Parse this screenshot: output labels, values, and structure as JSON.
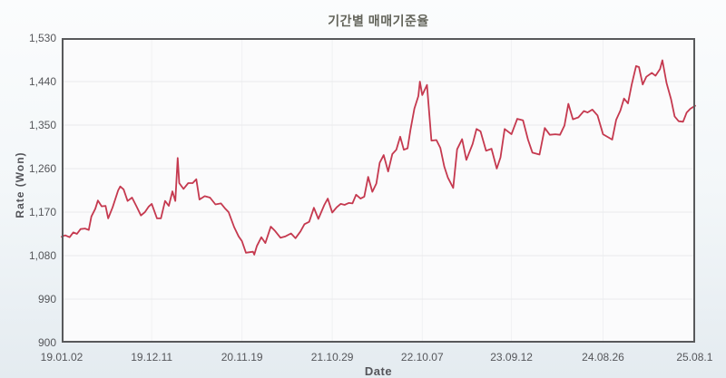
{
  "title": "기간별 매매기준율",
  "colors": {
    "line": "#c5394f",
    "plot_background": "#fbfbfc",
    "plot_border": "#58595b",
    "h_gridline": "#e9eaec",
    "v_gridline": "#f0f1f3",
    "tick_text": "#55565a",
    "title_text": "#63645a"
  },
  "chart_data": {
    "type": "line",
    "title": "기간별 매매기준율",
    "xlabel": "Date",
    "ylabel": "Rate (Won)",
    "ylim": [
      900,
      1530
    ],
    "yticks": [
      {
        "value": 900,
        "label": "900"
      },
      {
        "value": 990,
        "label": "990"
      },
      {
        "value": 1080,
        "label": "1,080"
      },
      {
        "value": 1170,
        "label": "1,170"
      },
      {
        "value": 1260,
        "label": "1,260"
      },
      {
        "value": 1350,
        "label": "1,350"
      },
      {
        "value": 1440,
        "label": "1,440"
      },
      {
        "value": 1530,
        "label": "1,530"
      }
    ],
    "x_range_days": [
      0,
      2414
    ],
    "xticks": [
      {
        "day": 0,
        "label": "19.01.02"
      },
      {
        "day": 343,
        "label": "19.12.11"
      },
      {
        "day": 687,
        "label": "20.11.19"
      },
      {
        "day": 1031,
        "label": "21.10.29"
      },
      {
        "day": 1374,
        "label": "22.10.07"
      },
      {
        "day": 1714,
        "label": "23.09.12"
      },
      {
        "day": 2063,
        "label": "24.08.26"
      },
      {
        "day": 2412,
        "label": "25.08.1"
      }
    ],
    "grid": true,
    "legend": "none",
    "series": [
      {
        "name": "매매기준율",
        "color": "#c5394f",
        "points": [
          [
            0,
            1119
          ],
          [
            13,
            1122
          ],
          [
            30,
            1118
          ],
          [
            44,
            1128
          ],
          [
            58,
            1125
          ],
          [
            72,
            1135
          ],
          [
            89,
            1136
          ],
          [
            103,
            1133
          ],
          [
            113,
            1161
          ],
          [
            128,
            1177
          ],
          [
            138,
            1194
          ],
          [
            152,
            1182
          ],
          [
            167,
            1183
          ],
          [
            177,
            1157
          ],
          [
            194,
            1180
          ],
          [
            215,
            1215
          ],
          [
            223,
            1223
          ],
          [
            236,
            1217
          ],
          [
            251,
            1193
          ],
          [
            268,
            1200
          ],
          [
            285,
            1182
          ],
          [
            302,
            1163
          ],
          [
            317,
            1170
          ],
          [
            331,
            1181
          ],
          [
            343,
            1187
          ],
          [
            363,
            1157
          ],
          [
            378,
            1157
          ],
          [
            394,
            1193
          ],
          [
            408,
            1183
          ],
          [
            422,
            1213
          ],
          [
            433,
            1193
          ],
          [
            442,
            1282
          ],
          [
            448,
            1230
          ],
          [
            464,
            1218
          ],
          [
            482,
            1230
          ],
          [
            499,
            1230
          ],
          [
            513,
            1238
          ],
          [
            525,
            1196
          ],
          [
            545,
            1203
          ],
          [
            565,
            1200
          ],
          [
            586,
            1186
          ],
          [
            607,
            1188
          ],
          [
            622,
            1178
          ],
          [
            636,
            1170
          ],
          [
            657,
            1139
          ],
          [
            674,
            1120
          ],
          [
            687,
            1110
          ],
          [
            702,
            1086
          ],
          [
            729,
            1088
          ],
          [
            734,
            1082
          ],
          [
            744,
            1100
          ],
          [
            761,
            1118
          ],
          [
            776,
            1106
          ],
          [
            797,
            1140
          ],
          [
            813,
            1131
          ],
          [
            834,
            1117
          ],
          [
            853,
            1120
          ],
          [
            874,
            1126
          ],
          [
            891,
            1116
          ],
          [
            910,
            1130
          ],
          [
            925,
            1145
          ],
          [
            943,
            1150
          ],
          [
            961,
            1179
          ],
          [
            978,
            1156
          ],
          [
            1001,
            1185
          ],
          [
            1014,
            1198
          ],
          [
            1031,
            1169
          ],
          [
            1048,
            1180
          ],
          [
            1063,
            1187
          ],
          [
            1078,
            1185
          ],
          [
            1094,
            1189
          ],
          [
            1108,
            1188
          ],
          [
            1122,
            1206
          ],
          [
            1139,
            1198
          ],
          [
            1153,
            1202
          ],
          [
            1168,
            1243
          ],
          [
            1184,
            1212
          ],
          [
            1199,
            1229
          ],
          [
            1212,
            1272
          ],
          [
            1227,
            1288
          ],
          [
            1244,
            1254
          ],
          [
            1260,
            1290
          ],
          [
            1275,
            1299
          ],
          [
            1290,
            1326
          ],
          [
            1304,
            1299
          ],
          [
            1318,
            1302
          ],
          [
            1329,
            1340
          ],
          [
            1344,
            1384
          ],
          [
            1359,
            1410
          ],
          [
            1365,
            1440
          ],
          [
            1374,
            1412
          ],
          [
            1392,
            1433
          ],
          [
            1409,
            1318
          ],
          [
            1428,
            1319
          ],
          [
            1443,
            1303
          ],
          [
            1458,
            1264
          ],
          [
            1472,
            1241
          ],
          [
            1492,
            1220
          ],
          [
            1507,
            1300
          ],
          [
            1526,
            1321
          ],
          [
            1542,
            1278
          ],
          [
            1566,
            1311
          ],
          [
            1581,
            1342
          ],
          [
            1596,
            1337
          ],
          [
            1617,
            1297
          ],
          [
            1638,
            1301
          ],
          [
            1658,
            1260
          ],
          [
            1672,
            1283
          ],
          [
            1688,
            1342
          ],
          [
            1714,
            1331
          ],
          [
            1736,
            1363
          ],
          [
            1758,
            1360
          ],
          [
            1777,
            1320
          ],
          [
            1794,
            1293
          ],
          [
            1821,
            1289
          ],
          [
            1841,
            1344
          ],
          [
            1860,
            1330
          ],
          [
            1881,
            1331
          ],
          [
            1899,
            1330
          ],
          [
            1916,
            1349
          ],
          [
            1931,
            1394
          ],
          [
            1948,
            1362
          ],
          [
            1969,
            1366
          ],
          [
            1990,
            1379
          ],
          [
            2004,
            1376
          ],
          [
            2022,
            1382
          ],
          [
            2042,
            1370
          ],
          [
            2063,
            1331
          ],
          [
            2098,
            1320
          ],
          [
            2113,
            1361
          ],
          [
            2129,
            1380
          ],
          [
            2143,
            1405
          ],
          [
            2158,
            1395
          ],
          [
            2172,
            1433
          ],
          [
            2189,
            1472
          ],
          [
            2200,
            1470
          ],
          [
            2214,
            1434
          ],
          [
            2228,
            1450
          ],
          [
            2249,
            1458
          ],
          [
            2263,
            1452
          ],
          [
            2280,
            1466
          ],
          [
            2289,
            1484
          ],
          [
            2305,
            1437
          ],
          [
            2322,
            1404
          ],
          [
            2336,
            1368
          ],
          [
            2351,
            1358
          ],
          [
            2368,
            1357
          ],
          [
            2382,
            1376
          ],
          [
            2396,
            1384
          ],
          [
            2414,
            1390
          ]
        ]
      }
    ]
  }
}
